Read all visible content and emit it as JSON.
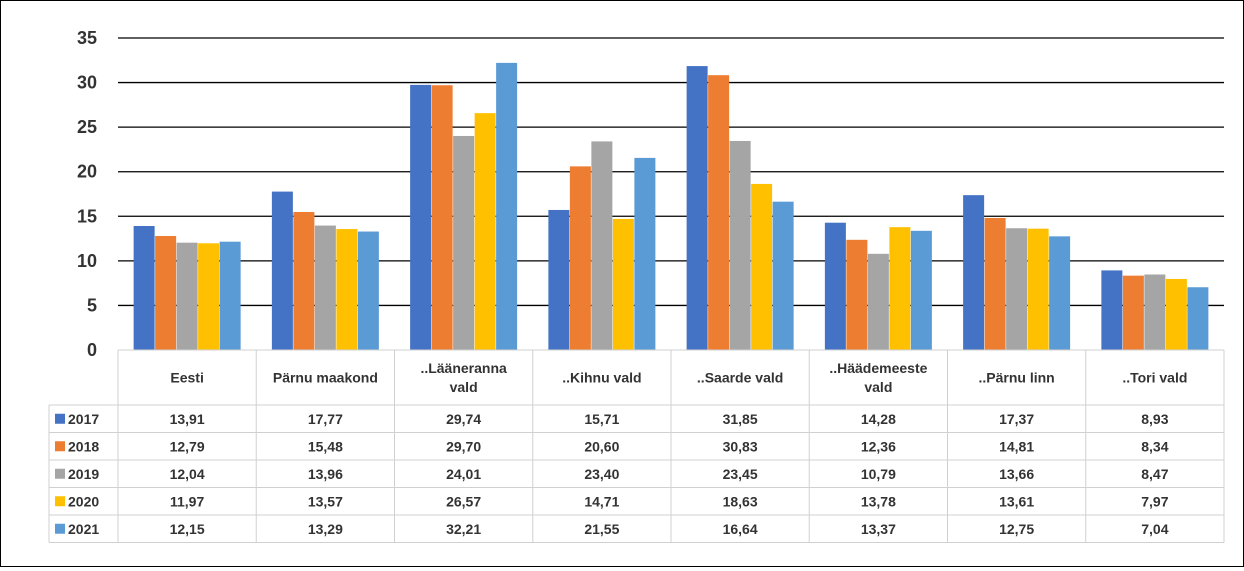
{
  "chart_data": {
    "type": "bar",
    "title": "",
    "xlabel": "",
    "ylabel": "",
    "ylim": [
      0,
      35
    ],
    "yticks": [
      0,
      5,
      10,
      15,
      20,
      25,
      30,
      35
    ],
    "grid": true,
    "legend_placement": "data-table-left",
    "categories": [
      [
        "Eesti"
      ],
      [
        "Pärnu maakond"
      ],
      [
        "..Lääneranna",
        "vald"
      ],
      [
        "..Kihnu vald"
      ],
      [
        "..Saarde vald"
      ],
      [
        "..Häädemeeste",
        "vald"
      ],
      [
        "..Pärnu linn"
      ],
      [
        "..Tori vald"
      ]
    ],
    "series": [
      {
        "name": "2017",
        "color": "#4472C4",
        "values": [
          13.91,
          17.77,
          29.74,
          15.71,
          31.85,
          14.28,
          17.37,
          8.93
        ],
        "labels": [
          "13,91",
          "17,77",
          "29,74",
          "15,71",
          "31,85",
          "14,28",
          "17,37",
          "8,93"
        ]
      },
      {
        "name": "2018",
        "color": "#ED7D31",
        "values": [
          12.79,
          15.48,
          29.7,
          20.6,
          30.83,
          12.36,
          14.81,
          8.34
        ],
        "labels": [
          "12,79",
          "15,48",
          "29,70",
          "20,60",
          "30,83",
          "12,36",
          "14,81",
          "8,34"
        ]
      },
      {
        "name": "2019",
        "color": "#A5A5A5",
        "values": [
          12.04,
          13.96,
          24.01,
          23.4,
          23.45,
          10.79,
          13.66,
          8.47
        ],
        "labels": [
          "12,04",
          "13,96",
          "24,01",
          "23,40",
          "23,45",
          "10,79",
          "13,66",
          "8,47"
        ]
      },
      {
        "name": "2020",
        "color": "#FFC000",
        "values": [
          11.97,
          13.57,
          26.57,
          14.71,
          18.63,
          13.78,
          13.61,
          7.97
        ],
        "labels": [
          "11,97",
          "13,57",
          "26,57",
          "14,71",
          "18,63",
          "13,78",
          "13,61",
          "7,97"
        ]
      },
      {
        "name": "2021",
        "color": "#5B9BD5",
        "values": [
          12.15,
          13.29,
          32.21,
          21.55,
          16.64,
          13.37,
          12.75,
          7.04
        ],
        "labels": [
          "12,15",
          "13,29",
          "32,21",
          "21,55",
          "16,64",
          "13,37",
          "12,75",
          "7,04"
        ]
      }
    ]
  }
}
